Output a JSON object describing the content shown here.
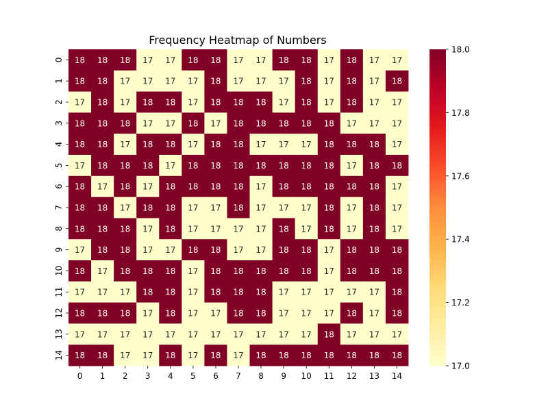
{
  "chart_data": {
    "type": "heatmap",
    "title": "Frequency Heatmap of Numbers",
    "xlabel": "",
    "ylabel": "",
    "x_categories": [
      "0",
      "1",
      "2",
      "3",
      "4",
      "5",
      "6",
      "7",
      "8",
      "9",
      "10",
      "11",
      "12",
      "13",
      "14"
    ],
    "y_categories": [
      "0",
      "1",
      "2",
      "3",
      "4",
      "5",
      "6",
      "7",
      "8",
      "9",
      "10",
      "11",
      "12",
      "13",
      "14"
    ],
    "values": [
      [
        18,
        18,
        18,
        17,
        17,
        18,
        18,
        17,
        17,
        18,
        18,
        17,
        18,
        17,
        17
      ],
      [
        18,
        18,
        17,
        17,
        17,
        17,
        18,
        17,
        17,
        17,
        18,
        17,
        18,
        17,
        18
      ],
      [
        17,
        18,
        17,
        18,
        18,
        17,
        18,
        18,
        18,
        17,
        18,
        17,
        18,
        17,
        17
      ],
      [
        18,
        18,
        18,
        17,
        17,
        18,
        17,
        18,
        18,
        18,
        18,
        18,
        17,
        17,
        17
      ],
      [
        18,
        18,
        17,
        18,
        18,
        17,
        18,
        18,
        17,
        17,
        17,
        18,
        18,
        18,
        17
      ],
      [
        17,
        18,
        18,
        18,
        17,
        18,
        18,
        18,
        18,
        18,
        18,
        18,
        17,
        18,
        18
      ],
      [
        18,
        17,
        18,
        17,
        18,
        18,
        18,
        18,
        17,
        18,
        18,
        18,
        18,
        18,
        17
      ],
      [
        18,
        18,
        17,
        18,
        18,
        17,
        17,
        18,
        17,
        17,
        17,
        18,
        17,
        18,
        17
      ],
      [
        18,
        18,
        18,
        17,
        18,
        17,
        17,
        17,
        17,
        18,
        17,
        18,
        17,
        18,
        17
      ],
      [
        17,
        18,
        18,
        17,
        17,
        18,
        18,
        17,
        17,
        18,
        18,
        17,
        18,
        18,
        18
      ],
      [
        18,
        17,
        18,
        18,
        18,
        17,
        18,
        18,
        18,
        18,
        18,
        17,
        18,
        18,
        18
      ],
      [
        17,
        17,
        17,
        18,
        18,
        17,
        18,
        18,
        18,
        17,
        17,
        17,
        17,
        17,
        18
      ],
      [
        18,
        18,
        18,
        17,
        18,
        17,
        17,
        18,
        18,
        17,
        17,
        17,
        18,
        17,
        18
      ],
      [
        17,
        17,
        17,
        17,
        17,
        17,
        17,
        17,
        17,
        17,
        17,
        18,
        17,
        17,
        17
      ],
      [
        18,
        18,
        17,
        17,
        18,
        17,
        18,
        17,
        18,
        18,
        18,
        18,
        18,
        18,
        18
      ]
    ],
    "colormap": "YlOrRd",
    "vmin": 17,
    "vmax": 18,
    "low_color": "#ffffcc",
    "high_color": "#800026",
    "annotate": true,
    "colorbar": {
      "ticks": [
        17.0,
        17.2,
        17.4,
        17.6,
        17.8,
        18.0
      ],
      "tick_labels": [
        "17.0",
        "17.2",
        "17.4",
        "17.6",
        "17.8",
        "18.0"
      ]
    }
  }
}
